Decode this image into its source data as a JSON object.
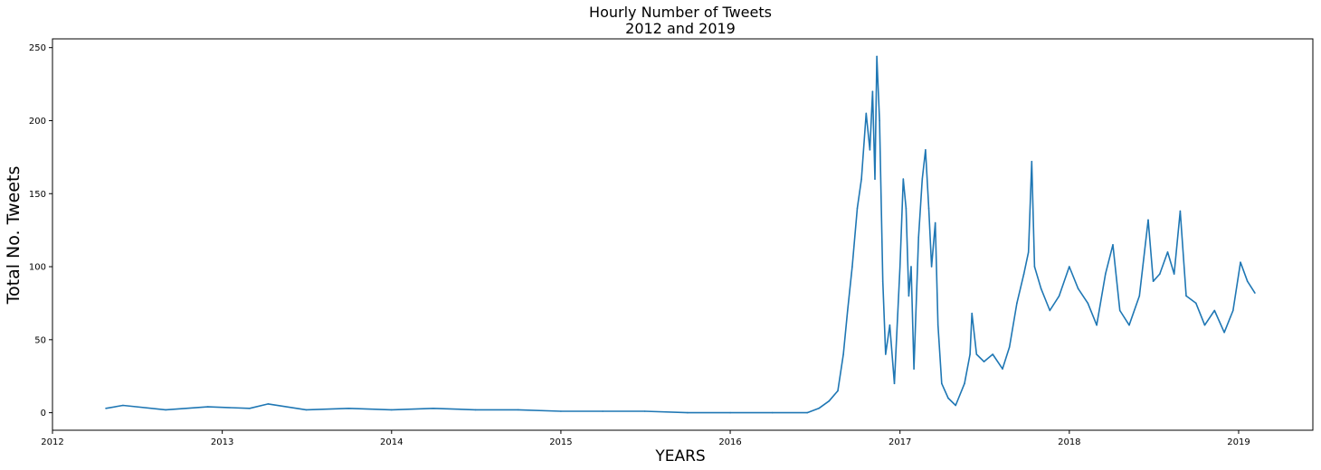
{
  "chart_data": {
    "type": "line",
    "title": "Hourly Number of Tweets",
    "subtitle": "2012 and 2019",
    "xlabel": "YEARS",
    "ylabel": "Total No. Tweets",
    "x_tick_labels": [
      "2012",
      "2013",
      "2014",
      "2015",
      "2016",
      "2017",
      "2018",
      "2019"
    ],
    "y_tick_labels": [
      "0",
      "50",
      "100",
      "150",
      "200",
      "250"
    ],
    "xlim": [
      "2012-01-01",
      "2019-06-10"
    ],
    "ylim": [
      -12,
      256
    ],
    "grid": false,
    "color": "#1f77b4",
    "series": [
      {
        "x": [
          "2012-04-25",
          "2012-06-01",
          "2012-09-01",
          "2012-12-01",
          "2013-03-01",
          "2013-04-10",
          "2013-07-01",
          "2013-10-01",
          "2014-01-01",
          "2014-04-01",
          "2014-07-01",
          "2014-10-01",
          "2015-01-01",
          "2015-04-01",
          "2015-07-01",
          "2015-10-01",
          "2016-01-01",
          "2016-04-01",
          "2016-06-15",
          "2016-07-10",
          "2016-08-01",
          "2016-08-20",
          "2016-09-01",
          "2016-09-10",
          "2016-09-20",
          "2016-10-01",
          "2016-10-10",
          "2016-10-20",
          "2016-10-28",
          "2016-11-03",
          "2016-11-08",
          "2016-11-12",
          "2016-11-18",
          "2016-11-25",
          "2016-12-01",
          "2016-12-10",
          "2016-12-20",
          "2017-01-01",
          "2017-01-08",
          "2017-01-14",
          "2017-01-20",
          "2017-01-25",
          "2017-01-31",
          "2017-02-10",
          "2017-02-18",
          "2017-02-25",
          "2017-03-04",
          "2017-03-10",
          "2017-03-18",
          "2017-03-24",
          "2017-04-01",
          "2017-04-15",
          "2017-05-01",
          "2017-05-20",
          "2017-06-01",
          "2017-06-05",
          "2017-06-15",
          "2017-07-01",
          "2017-07-20",
          "2017-08-10",
          "2017-08-25",
          "2017-09-10",
          "2017-09-25",
          "2017-10-05",
          "2017-10-12",
          "2017-10-18",
          "2017-11-01",
          "2017-11-20",
          "2017-12-10",
          "2018-01-01",
          "2018-01-20",
          "2018-02-10",
          "2018-03-01",
          "2018-03-20",
          "2018-04-05",
          "2018-04-20",
          "2018-05-10",
          "2018-06-01",
          "2018-06-20",
          "2018-07-01",
          "2018-07-15",
          "2018-08-01",
          "2018-08-15",
          "2018-08-28",
          "2018-09-10",
          "2018-10-01",
          "2018-10-20",
          "2018-11-10",
          "2018-12-01",
          "2018-12-20",
          "2019-01-05",
          "2019-01-20",
          "2019-02-05"
        ],
        "y": [
          3,
          5,
          2,
          4,
          3,
          6,
          2,
          3,
          2,
          3,
          2,
          2,
          1,
          1,
          1,
          0,
          0,
          0,
          0,
          3,
          8,
          15,
          40,
          70,
          100,
          140,
          160,
          205,
          180,
          220,
          160,
          244,
          200,
          90,
          40,
          60,
          20,
          100,
          160,
          140,
          80,
          100,
          30,
          120,
          160,
          180,
          140,
          100,
          130,
          60,
          20,
          10,
          5,
          20,
          40,
          68,
          40,
          35,
          40,
          30,
          45,
          75,
          95,
          110,
          172,
          100,
          85,
          70,
          80,
          100,
          85,
          75,
          60,
          95,
          115,
          70,
          60,
          80,
          132,
          90,
          95,
          110,
          95,
          138,
          80,
          75,
          60,
          70,
          55,
          70,
          103,
          90,
          82
        ]
      }
    ]
  }
}
